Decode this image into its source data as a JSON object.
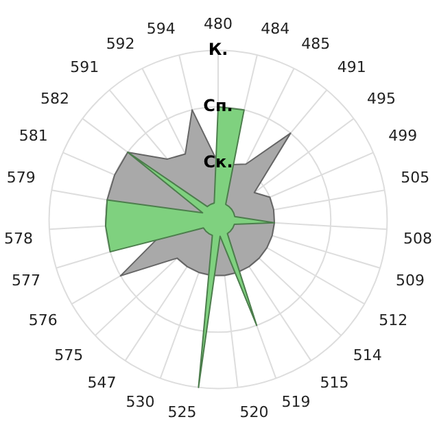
{
  "chart_data": {
    "type": "radar",
    "categories": [
      "480",
      "484",
      "485",
      "491",
      "495",
      "499",
      "505",
      "508",
      "509",
      "512",
      "514",
      "515",
      "519",
      "520",
      "525",
      "530",
      "547",
      "575",
      "576",
      "577",
      "578",
      "579",
      "581",
      "582",
      "591",
      "592",
      "594"
    ],
    "series": [
      {
        "color": "#a9a9a9",
        "values": [
          1.0,
          1.0,
          1.1,
          2.0,
          0.8,
          1.0,
          1.0,
          1.0,
          1.0,
          1.0,
          1.0,
          1.0,
          1.0,
          1.0,
          1.0,
          1.0,
          1.0,
          1.0,
          2.0,
          1.1,
          2.0,
          2.0,
          2.0,
          2.0,
          1.4,
          1.3,
          2.0
        ]
      },
      {
        "color": "#7fd17f",
        "values": [
          2.0,
          2.0,
          0.3,
          0.3,
          0.3,
          0.3,
          0.3,
          1.0,
          0.3,
          0.3,
          0.3,
          0.3,
          2.0,
          0.3,
          3.0,
          0.3,
          0.3,
          0.3,
          0.3,
          2.0,
          2.0,
          2.0,
          0.3,
          2.0,
          0.3,
          0.3,
          0.3
        ]
      }
    ],
    "ylim": [
      0,
      3
    ],
    "yticks": [
      {
        "value": 1,
        "label": "Ск."
      },
      {
        "value": 2,
        "label": "Сп."
      },
      {
        "value": 3,
        "label": "К."
      }
    ],
    "grid": true
  }
}
